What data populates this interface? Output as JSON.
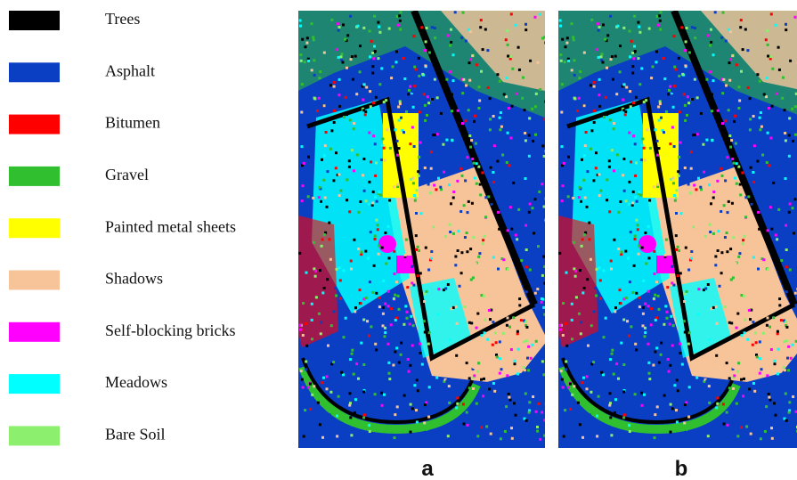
{
  "legend": [
    {
      "label": "Trees",
      "color": "#000000"
    },
    {
      "label": "Asphalt",
      "color": "#0a3fc4"
    },
    {
      "label": "Bitumen",
      "color": "#ff0000"
    },
    {
      "label": "Gravel",
      "color": "#2fbf2f"
    },
    {
      "label": "Painted metal sheets",
      "color": "#ffff00"
    },
    {
      "label": "Shadows",
      "color": "#f7c49a"
    },
    {
      "label": "Self-blocking bricks",
      "color": "#ff00ff"
    },
    {
      "label": "Meadows",
      "color": "#00ffff"
    },
    {
      "label": "Bare Soil",
      "color": "#8cf06e"
    }
  ],
  "panels": [
    {
      "label": "a"
    },
    {
      "label": "b"
    }
  ]
}
